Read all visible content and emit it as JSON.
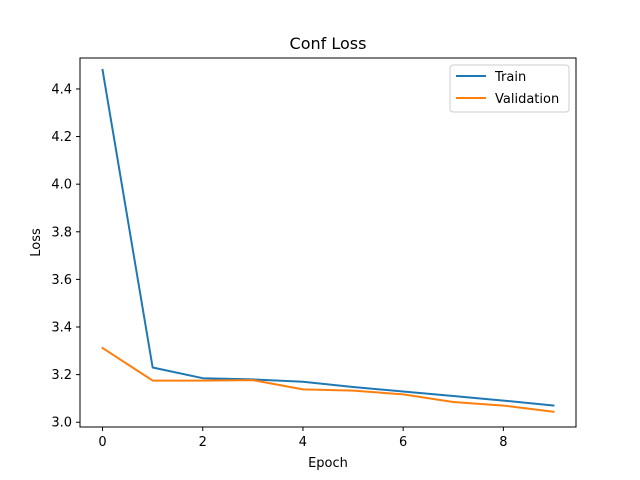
{
  "chart_data": {
    "type": "line",
    "title": "Conf Loss",
    "xlabel": "Epoch",
    "ylabel": "Loss",
    "xlim": [
      -0.45,
      9.45
    ],
    "ylim": [
      2.98,
      4.53
    ],
    "xticks": [
      0,
      2,
      4,
      6,
      8
    ],
    "yticks": [
      3.0,
      3.2,
      3.4,
      3.6,
      3.8,
      4.0,
      4.2,
      4.4
    ],
    "grid": false,
    "legend_position": "top-right",
    "x": [
      0,
      1,
      2,
      3,
      4,
      5,
      6,
      7,
      8,
      9
    ],
    "series": [
      {
        "name": "Train",
        "color": "#1f77b4",
        "values": [
          4.48,
          3.23,
          3.185,
          3.18,
          3.17,
          3.148,
          3.129,
          3.11,
          3.091,
          3.07
        ]
      },
      {
        "name": "Validation",
        "color": "#ff7f0e",
        "values": [
          3.312,
          3.175,
          3.175,
          3.177,
          3.138,
          3.133,
          3.117,
          3.085,
          3.07,
          3.044
        ]
      }
    ]
  }
}
